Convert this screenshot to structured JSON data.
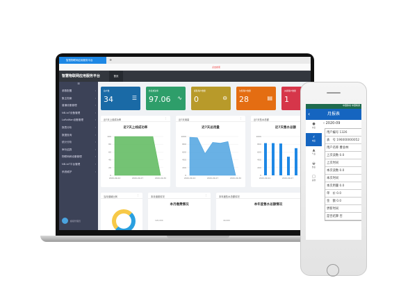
{
  "browser": {
    "tab_title": "智慧物联网应用服务平台",
    "tab_plus": "+",
    "search_hint": "点击搜索"
  },
  "header": {
    "brand": "智慧物联网应用服务平台",
    "home_tab": "首页"
  },
  "sidebar": {
    "toggle": "☰",
    "items": [
      {
        "label": "参数配置"
      },
      {
        "label": "集主档案"
      },
      {
        "label": "普通设备管理"
      },
      {
        "label": "NB-IoT设备管理"
      },
      {
        "label": "LoRaWan设备管理"
      },
      {
        "label": "报表分析"
      },
      {
        "label": "数据查询"
      },
      {
        "label": "统计分析"
      },
      {
        "label": "审价结算"
      },
      {
        "label": "物联网阀设备管理"
      },
      {
        "label": "NB-IoT平台管理"
      },
      {
        "label": "系统维护"
      }
    ],
    "user": "超级管理员"
  },
  "stat_cards": [
    {
      "label": "总户数",
      "value": "34",
      "icon": "list-icon",
      "color": "#1a6aa6"
    },
    {
      "label": "抄表成功率",
      "value": "97.06",
      "icon": "pulse-icon",
      "color": "#2e9e6a"
    },
    {
      "label": "报警用户数量",
      "value": "0",
      "icon": "minus-circle-icon",
      "color": "#b89a2a"
    },
    {
      "label": "欠费用户数量",
      "value": "28",
      "icon": "card-icon",
      "color": "#e46d12"
    },
    {
      "label": "关阀用户数量",
      "value": "1",
      "icon": "lock-icon",
      "color": "#d6364a"
    }
  ],
  "panels": [
    {
      "header": "近7天上线成功率",
      "title": "近7天上线成功率"
    },
    {
      "header": "近7天用量",
      "title": "近7天总用量"
    },
    {
      "header": "近7天售水总额",
      "title": "近7天售水总额"
    },
    {
      "header": "当月缴纳比例",
      "title": ""
    },
    {
      "header": "本月缴费情况",
      "title": "本月缴费情况"
    },
    {
      "header": "本年度售水总额情况",
      "title": "本年度售水总额情况"
    }
  ],
  "chart_data": [
    {
      "type": "area",
      "x": [
        "2020-09-24",
        "2020-09-25",
        "2020-09-26",
        "2020-09-27",
        "2020-09-28",
        "2020-09-29",
        "2020-09-30"
      ],
      "values": [
        100,
        100,
        100,
        100,
        100,
        100,
        0
      ],
      "ylim": [
        0,
        100
      ],
      "yticks": [
        0,
        20,
        40,
        60,
        80,
        100
      ],
      "xticks": [
        "2020-09-24",
        "2020-09-27",
        "2020-09-30"
      ],
      "color": "#5cb85c"
    },
    {
      "type": "area",
      "x": [
        "2020-09-24",
        "2020-09-25",
        "2020-09-26",
        "2020-09-27",
        "2020-09-28",
        "2020-09-29",
        "2020-09-30"
      ],
      "values": [
        980,
        970,
        560,
        850,
        830,
        870,
        0
      ],
      "ylim": [
        0,
        1000
      ],
      "yticks": [
        0,
        200,
        400,
        600,
        800,
        1000
      ],
      "xticks": [
        "2020-09-24",
        "2020-09-27",
        "2020-09-30"
      ],
      "color": "#4fa3e0"
    },
    {
      "type": "bar",
      "x": [
        "2020-09-24",
        "2020-09-25",
        "2020-09-26",
        "2020-09-27",
        "2020-09-28",
        "2020-09-29",
        "2020-09-30"
      ],
      "values": [
        830,
        830,
        820,
        480,
        700,
        820,
        840
      ],
      "ylim": [
        0,
        1000
      ],
      "yticks": [
        0,
        200,
        400,
        600,
        800,
        1000
      ],
      "xticks": [
        "2020-09-24",
        "2020-09-27"
      ],
      "color": "#1e88e5"
    }
  ],
  "partial_axis": {
    "monthly_top": "120,000",
    "yearly_top": "40,000"
  },
  "phone": {
    "status": "中国移动 中国联通",
    "title": "月报表",
    "date": "2020-09",
    "nav": [
      {
        "label": "水表",
        "icon": "water-icon"
      },
      {
        "label": "电表",
        "icon": "electric-icon"
      },
      {
        "label": "气表",
        "icon": "gas-icon"
      },
      {
        "label": "热表",
        "icon": "heat-icon"
      },
      {
        "label": "其他",
        "icon": "other-icon"
      }
    ],
    "rows": [
      {
        "text": "用户编号 1326"
      },
      {
        "text": "表　号 196000000052"
      },
      {
        "text": "用户名称 曹会林"
      },
      {
        "text": "上次读数 0.0"
      },
      {
        "text": "上次时间"
      },
      {
        "text": "本次读数 0.0"
      },
      {
        "text": "本次时间"
      },
      {
        "text": "本次用量 0.0"
      },
      {
        "text": "单　价 0.0"
      },
      {
        "text": "金　额 0.0"
      },
      {
        "text": "更新时间"
      },
      {
        "text": "是否结算 否"
      }
    ]
  }
}
